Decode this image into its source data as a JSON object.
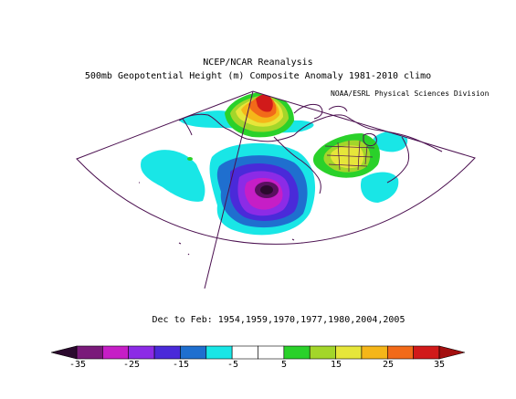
{
  "title": {
    "line1": "NCEP/NCAR Reanalysis",
    "line2": "500mb Geopotential Height (m) Composite Anomaly 1981-2010 climo",
    "source": "NOAA/ESRL Physical Sciences Division"
  },
  "period_label": "Dec to Feb: 1954,1959,1970,1977,1980,2004,2005",
  "colorbar": {
    "colors": [
      "#2b0a2e",
      "#7a1a7a",
      "#c61ec6",
      "#8c2be6",
      "#4a2ad9",
      "#1f6fcf",
      "#19e6e6",
      "#ffffff",
      "#ffffff",
      "#2ad12a",
      "#a3d62a",
      "#e6e63a",
      "#f5b619",
      "#f26a19",
      "#d11a1a",
      "#a30f0f"
    ],
    "tick_labels": [
      "-35",
      "-25",
      "-15",
      "-5",
      "5",
      "15",
      "25",
      "35"
    ]
  }
}
